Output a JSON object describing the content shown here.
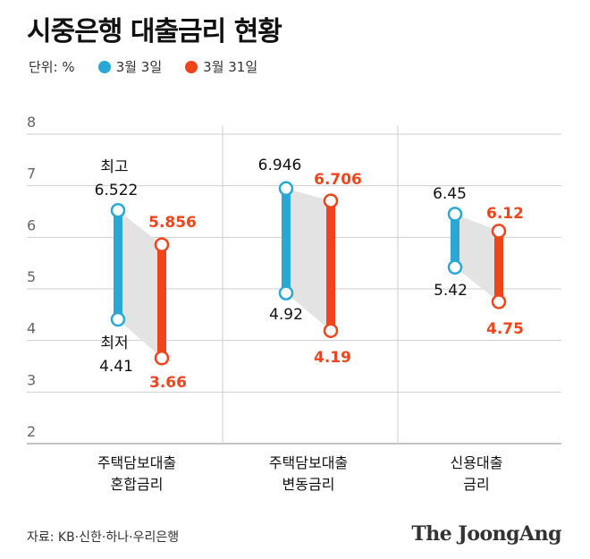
{
  "title": "시중은행 대출금리 현황",
  "unit_label": "단위: %",
  "legend": [
    {
      "label": "3월 3일",
      "color": "#29a8d6"
    },
    {
      "label": "3월 31일",
      "color": "#f0441c"
    }
  ],
  "chart_data": {
    "type": "range-bar",
    "ylim": [
      2,
      8
    ],
    "yticks": [
      "8",
      "7",
      "6",
      "5",
      "4",
      "3",
      "2"
    ],
    "groups": [
      {
        "name_line1": "주택담보대출",
        "name_line2": "혼합금리",
        "series": [
          {
            "name": "3월 3일",
            "high": 6.522,
            "low": 4.41,
            "high_label": "6.522",
            "low_label": "4.41",
            "high_note": "최고",
            "low_note": "최저"
          },
          {
            "name": "3월 31일",
            "high": 5.856,
            "low": 3.66,
            "high_label": "5.856",
            "low_label": "3.66"
          }
        ]
      },
      {
        "name_line1": "주택담보대출",
        "name_line2": "변동금리",
        "series": [
          {
            "name": "3월 3일",
            "high": 6.946,
            "low": 4.92,
            "high_label": "6.946",
            "low_label": "4.92"
          },
          {
            "name": "3월 31일",
            "high": 6.706,
            "low": 4.19,
            "high_label": "6.706",
            "low_label": "4.19"
          }
        ]
      },
      {
        "name_line1": "신용대출",
        "name_line2": "금리",
        "series": [
          {
            "name": "3월 3일",
            "high": 6.45,
            "low": 5.42,
            "high_label": "6.45",
            "low_label": "5.42"
          },
          {
            "name": "3월 31일",
            "high": 6.12,
            "low": 4.75,
            "high_label": "6.12",
            "low_label": "4.75"
          }
        ]
      }
    ]
  },
  "colors": {
    "blue": "#29a8d6",
    "red": "#f0441c",
    "band": "#e3e3e3",
    "grid": "#cfcfcf"
  },
  "source": "자료: KB·신한·하나·우리은행",
  "brand": "The JoongAng"
}
